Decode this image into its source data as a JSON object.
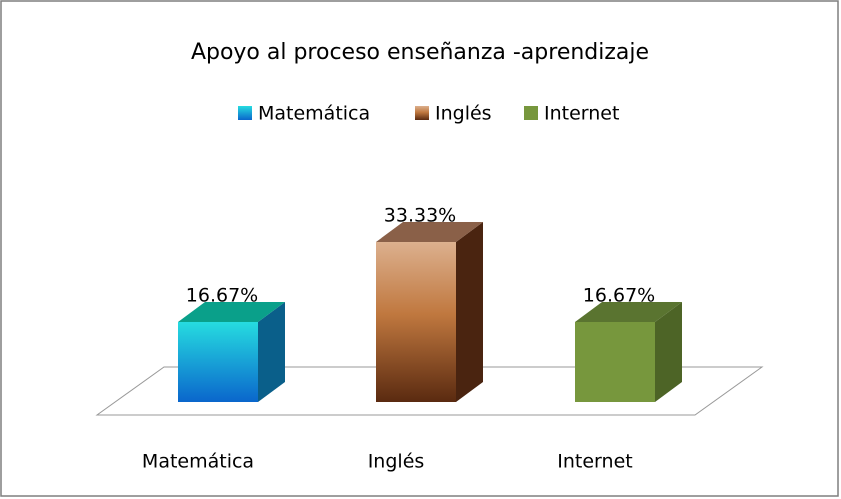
{
  "chart_data": {
    "type": "bar3d",
    "title": "Apoyo al proceso enseñanza -aprendizaje",
    "categories": [
      "Matemática",
      "Inglés",
      "Internet"
    ],
    "values": [
      16.67,
      33.33,
      16.67
    ],
    "value_labels": [
      "16.67%",
      "33.33%",
      "16.67%"
    ],
    "colors": [
      "#1aa6e6",
      "#b8673a",
      "#77973d"
    ],
    "legend": "top"
  }
}
